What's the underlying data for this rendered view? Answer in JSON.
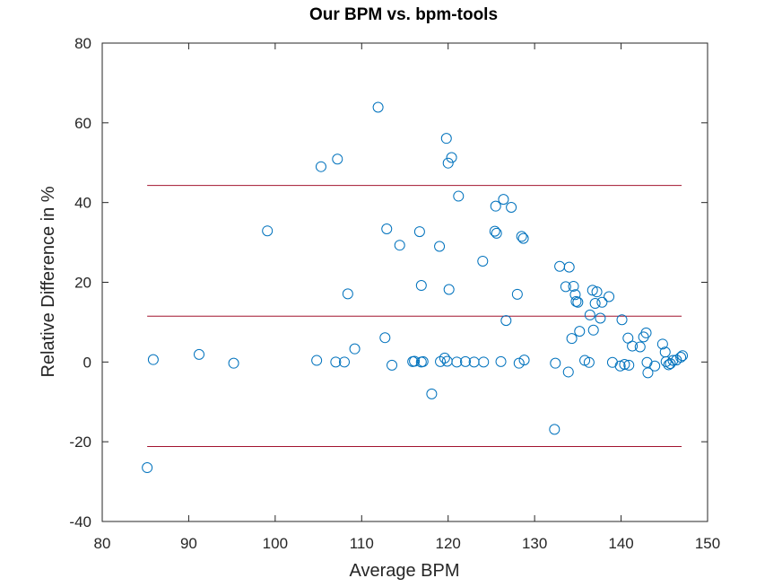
{
  "chart_data": {
    "type": "scatter",
    "title": "Our BPM vs. bpm-tools",
    "xlabel": "Average BPM",
    "ylabel": "Relative Difference in %",
    "xlim": [
      80,
      150
    ],
    "ylim": [
      -40,
      80
    ],
    "xticks": [
      80,
      90,
      100,
      110,
      120,
      130,
      140,
      150
    ],
    "yticks": [
      -40,
      -20,
      0,
      20,
      40,
      60,
      80
    ],
    "marker_color": "#0072BD",
    "line_color": "#A2142F",
    "grid": false,
    "legend": "none",
    "reference_lines": [
      {
        "y": 44.3,
        "x": [
          85.2,
          147
        ]
      },
      {
        "y": 11.5,
        "x": [
          85.2,
          147
        ]
      },
      {
        "y": -21.2,
        "x": [
          85.2,
          147
        ]
      }
    ],
    "points": [
      [
        85.2,
        -26.5
      ],
      [
        85.9,
        0.6
      ],
      [
        91.2,
        1.9
      ],
      [
        95.2,
        -0.3
      ],
      [
        99.1,
        32.9
      ],
      [
        104.8,
        0.4
      ],
      [
        105.3,
        49.0
      ],
      [
        107.0,
        0.0
      ],
      [
        107.2,
        50.9
      ],
      [
        108.0,
        0.0
      ],
      [
        108.4,
        17.1
      ],
      [
        109.2,
        3.3
      ],
      [
        111.9,
        63.9
      ],
      [
        112.7,
        6.1
      ],
      [
        112.9,
        33.4
      ],
      [
        113.5,
        -0.8
      ],
      [
        114.4,
        29.3
      ],
      [
        115.9,
        0.1
      ],
      [
        116.1,
        0.2
      ],
      [
        116.7,
        32.7
      ],
      [
        116.9,
        19.2
      ],
      [
        116.9,
        0.0
      ],
      [
        117.1,
        0.1
      ],
      [
        118.1,
        -8.0
      ],
      [
        119.0,
        29.0
      ],
      [
        119.1,
        0.1
      ],
      [
        119.6,
        1.0
      ],
      [
        119.8,
        56.1
      ],
      [
        119.9,
        0.2
      ],
      [
        120.0,
        49.9
      ],
      [
        120.1,
        18.2
      ],
      [
        120.4,
        51.3
      ],
      [
        121.0,
        0.0
      ],
      [
        121.2,
        41.6
      ],
      [
        122.0,
        0.1
      ],
      [
        123.0,
        0.0
      ],
      [
        124.0,
        25.3
      ],
      [
        124.1,
        0.0
      ],
      [
        125.4,
        32.8
      ],
      [
        125.5,
        39.1
      ],
      [
        125.6,
        32.3
      ],
      [
        126.1,
        0.1
      ],
      [
        126.4,
        40.8
      ],
      [
        126.7,
        10.4
      ],
      [
        127.3,
        38.8
      ],
      [
        128.0,
        17.0
      ],
      [
        128.2,
        -0.3
      ],
      [
        128.5,
        31.5
      ],
      [
        128.7,
        31.0
      ],
      [
        128.8,
        0.5
      ],
      [
        132.3,
        -16.9
      ],
      [
        132.4,
        -0.3
      ],
      [
        132.9,
        24.0
      ],
      [
        133.6,
        18.9
      ],
      [
        133.9,
        -2.5
      ],
      [
        134.0,
        23.8
      ],
      [
        134.3,
        5.9
      ],
      [
        134.5,
        19.0
      ],
      [
        134.7,
        16.9
      ],
      [
        134.8,
        15.2
      ],
      [
        135.0,
        15.0
      ],
      [
        135.2,
        7.7
      ],
      [
        135.8,
        0.4
      ],
      [
        136.3,
        -0.1
      ],
      [
        136.4,
        11.8
      ],
      [
        136.7,
        18.0
      ],
      [
        136.8,
        8.0
      ],
      [
        137.0,
        14.7
      ],
      [
        137.2,
        17.6
      ],
      [
        137.6,
        11.0
      ],
      [
        137.8,
        15.0
      ],
      [
        138.6,
        16.4
      ],
      [
        139.0,
        -0.1
      ],
      [
        139.9,
        -1.0
      ],
      [
        140.1,
        10.6
      ],
      [
        140.4,
        -0.6
      ],
      [
        140.8,
        6.0
      ],
      [
        140.9,
        -0.8
      ],
      [
        141.3,
        4.0
      ],
      [
        142.2,
        3.8
      ],
      [
        142.6,
        6.3
      ],
      [
        142.9,
        7.3
      ],
      [
        143.0,
        -0.1
      ],
      [
        143.1,
        -2.7
      ],
      [
        143.9,
        -1.0
      ],
      [
        144.8,
        4.5
      ],
      [
        145.1,
        2.5
      ],
      [
        145.2,
        0.1
      ],
      [
        145.5,
        -0.7
      ],
      [
        145.7,
        -0.4
      ],
      [
        146.0,
        0.4
      ],
      [
        146.4,
        0.5
      ],
      [
        146.9,
        1.2
      ],
      [
        147.1,
        1.6
      ]
    ]
  }
}
